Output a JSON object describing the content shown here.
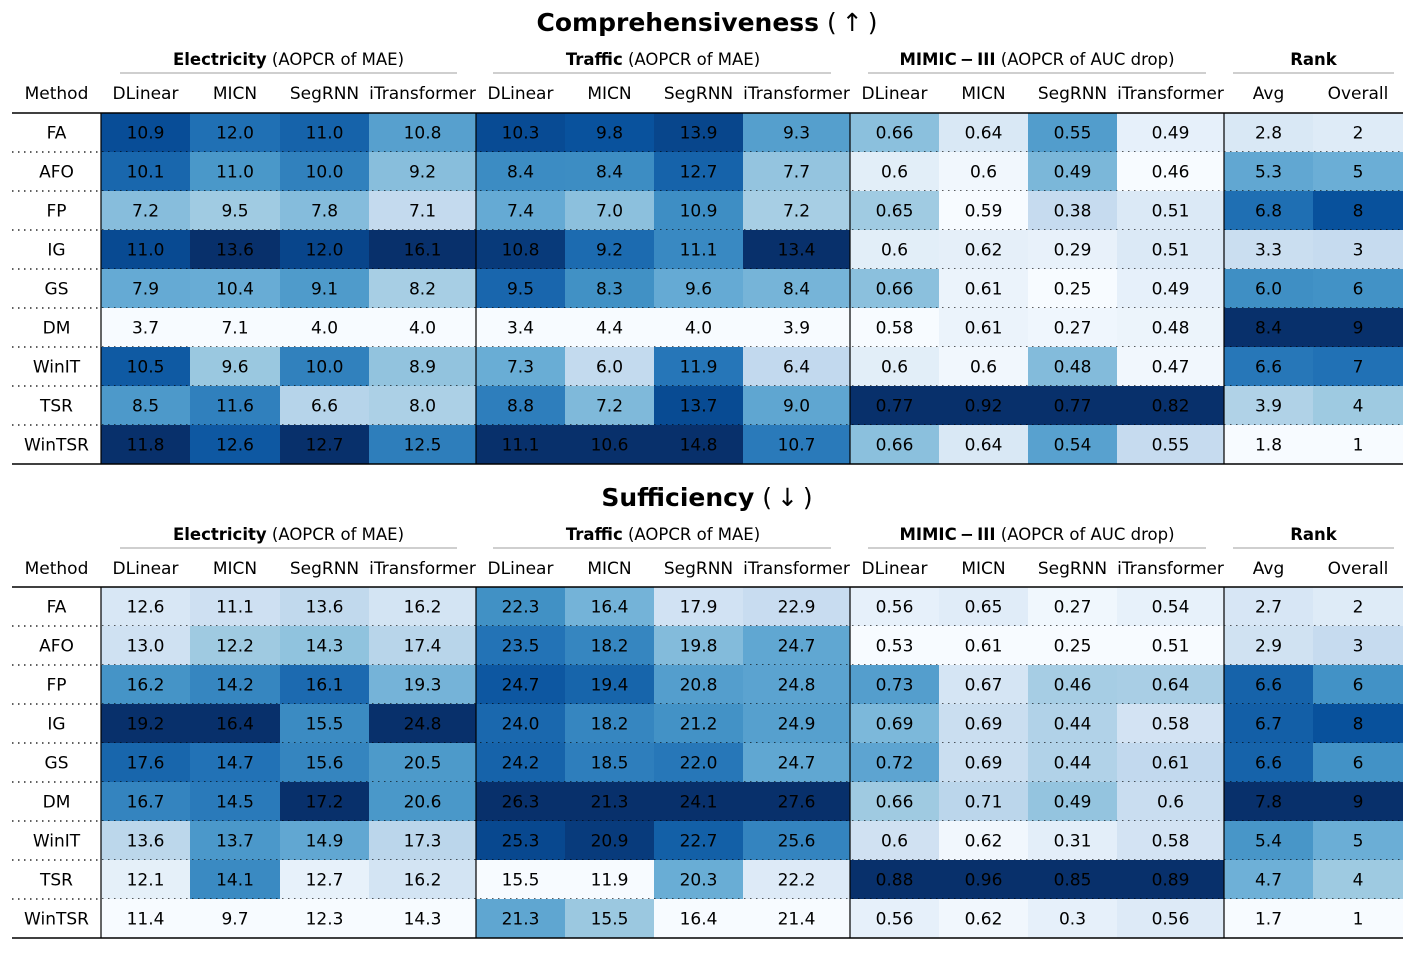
{
  "figure": {
    "columns": [
      "DLinear",
      "MICN",
      "SegRNN",
      "iTransformer",
      "DLinear",
      "MICN",
      "SegRNN",
      "iTransformer",
      "DLinear",
      "MICN",
      "SegRNN",
      "iTransformer",
      "Avg",
      "Overall"
    ],
    "method_header": "Method",
    "groups": [
      {
        "bold": "Electricity",
        "rest": " (AOPCR of MAE)"
      },
      {
        "bold": "Traffic",
        "rest": " (AOPCR of MAE)"
      },
      {
        "bold": "MIMIC − III",
        "rest": " (AOPCR of AUC drop)"
      },
      {
        "bold": "Rank",
        "rest": ""
      }
    ],
    "colormap": "Blues"
  },
  "chart_data": [
    {
      "type": "heatmap",
      "title": "Comprehensiveness",
      "arrow": "( ↑ )",
      "rows": [
        "FA",
        "AFO",
        "FP",
        "IG",
        "GS",
        "DM",
        "WinIT",
        "TSR",
        "WinTSR"
      ],
      "values": [
        [
          "10.9",
          "12.0",
          "11.0",
          "10.8",
          "10.3",
          "9.8",
          "13.9",
          "9.3",
          "0.66",
          "0.64",
          "0.55",
          "0.49",
          "2.8",
          "2"
        ],
        [
          "10.1",
          "11.0",
          "10.0",
          "9.2",
          "8.4",
          "8.4",
          "12.7",
          "7.7",
          "0.6",
          "0.6",
          "0.49",
          "0.46",
          "5.3",
          "5"
        ],
        [
          "7.2",
          "9.5",
          "7.8",
          "7.1",
          "7.4",
          "7.0",
          "10.9",
          "7.2",
          "0.65",
          "0.59",
          "0.38",
          "0.51",
          "6.8",
          "8"
        ],
        [
          "11.0",
          "13.6",
          "12.0",
          "16.1",
          "10.8",
          "9.2",
          "11.1",
          "13.4",
          "0.6",
          "0.62",
          "0.29",
          "0.51",
          "3.3",
          "3"
        ],
        [
          "7.9",
          "10.4",
          "9.1",
          "8.2",
          "9.5",
          "8.3",
          "9.6",
          "8.4",
          "0.66",
          "0.61",
          "0.25",
          "0.49",
          "6.0",
          "6"
        ],
        [
          "3.7",
          "7.1",
          "4.0",
          "4.0",
          "3.4",
          "4.4",
          "4.0",
          "3.9",
          "0.58",
          "0.61",
          "0.27",
          "0.48",
          "8.4",
          "9"
        ],
        [
          "10.5",
          "9.6",
          "10.0",
          "8.9",
          "7.3",
          "6.0",
          "11.9",
          "6.4",
          "0.6",
          "0.6",
          "0.48",
          "0.47",
          "6.6",
          "7"
        ],
        [
          "8.5",
          "11.6",
          "6.6",
          "8.0",
          "8.8",
          "7.2",
          "13.7",
          "9.0",
          "0.77",
          "0.92",
          "0.77",
          "0.82",
          "3.9",
          "4"
        ],
        [
          "11.8",
          "12.6",
          "12.7",
          "12.5",
          "11.1",
          "10.6",
          "14.8",
          "10.7",
          "0.66",
          "0.64",
          "0.54",
          "0.55",
          "1.8",
          "1"
        ]
      ]
    },
    {
      "type": "heatmap",
      "title": "Sufficiency",
      "arrow": "( ↓ )",
      "rows": [
        "FA",
        "AFO",
        "FP",
        "IG",
        "GS",
        "DM",
        "WinIT",
        "TSR",
        "WinTSR"
      ],
      "values": [
        [
          "12.6",
          "11.1",
          "13.6",
          "16.2",
          "22.3",
          "16.4",
          "17.9",
          "22.9",
          "0.56",
          "0.65",
          "0.27",
          "0.54",
          "2.7",
          "2"
        ],
        [
          "13.0",
          "12.2",
          "14.3",
          "17.4",
          "23.5",
          "18.2",
          "19.8",
          "24.7",
          "0.53",
          "0.61",
          "0.25",
          "0.51",
          "2.9",
          "3"
        ],
        [
          "16.2",
          "14.2",
          "16.1",
          "19.3",
          "24.7",
          "19.4",
          "20.8",
          "24.8",
          "0.73",
          "0.67",
          "0.46",
          "0.64",
          "6.6",
          "6"
        ],
        [
          "19.2",
          "16.4",
          "15.5",
          "24.8",
          "24.0",
          "18.2",
          "21.2",
          "24.9",
          "0.69",
          "0.69",
          "0.44",
          "0.58",
          "6.7",
          "8"
        ],
        [
          "17.6",
          "14.7",
          "15.6",
          "20.5",
          "24.2",
          "18.5",
          "22.0",
          "24.7",
          "0.72",
          "0.69",
          "0.44",
          "0.61",
          "6.6",
          "6"
        ],
        [
          "16.7",
          "14.5",
          "17.2",
          "20.6",
          "26.3",
          "21.3",
          "24.1",
          "27.6",
          "0.66",
          "0.71",
          "0.49",
          "0.6",
          "7.8",
          "9"
        ],
        [
          "13.6",
          "13.7",
          "14.9",
          "17.3",
          "25.3",
          "20.9",
          "22.7",
          "25.6",
          "0.6",
          "0.62",
          "0.31",
          "0.58",
          "5.4",
          "5"
        ],
        [
          "12.1",
          "14.1",
          "12.7",
          "16.2",
          "15.5",
          "11.9",
          "20.3",
          "22.2",
          "0.88",
          "0.96",
          "0.85",
          "0.89",
          "4.7",
          "4"
        ],
        [
          "11.4",
          "9.7",
          "12.3",
          "14.3",
          "21.3",
          "15.5",
          "16.4",
          "21.4",
          "0.56",
          "0.62",
          "0.3",
          "0.56",
          "1.7",
          "1"
        ]
      ]
    }
  ]
}
